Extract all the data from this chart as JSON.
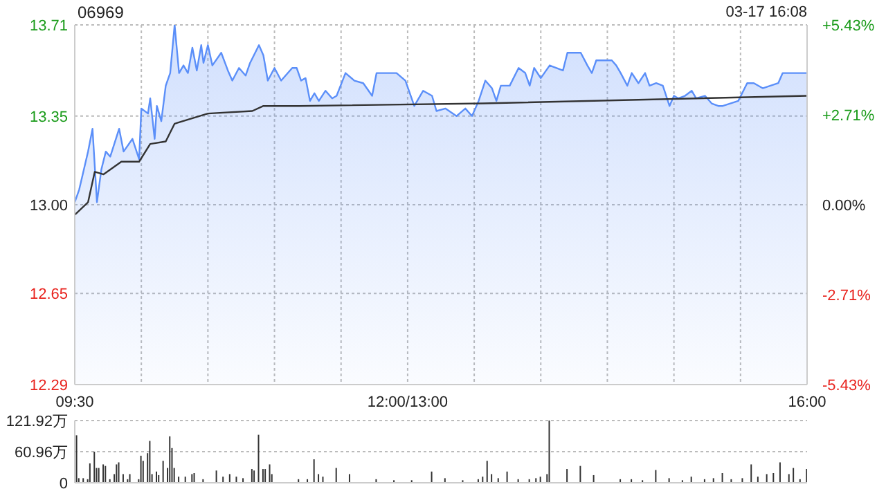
{
  "chart_data": [
    {
      "type": "area",
      "title": "06969",
      "annotations": [
        "03-17 16:08"
      ],
      "categories": [
        "09:30",
        null,
        null,
        null,
        null,
        null,
        null,
        null,
        null,
        null,
        null,
        null,
        null,
        null,
        null,
        null,
        null,
        null,
        null,
        null,
        null,
        null,
        null,
        null,
        null,
        null,
        null,
        null,
        null,
        null,
        null,
        null,
        null,
        null,
        null,
        null,
        null,
        null,
        null,
        null,
        null,
        null,
        null,
        null,
        null,
        null,
        null,
        null,
        null,
        null,
        null,
        null,
        null,
        null,
        null,
        null,
        null,
        null,
        null,
        null,
        null,
        null,
        null,
        null,
        null,
        null,
        null,
        null,
        null,
        null,
        null,
        null,
        null,
        null,
        null,
        null,
        null,
        null,
        null,
        null,
        null,
        null,
        null,
        null,
        null,
        null,
        null,
        null,
        null,
        null,
        null,
        null,
        null,
        null,
        null,
        null,
        null,
        null,
        null,
        null,
        null,
        null,
        null,
        null,
        null,
        null,
        null,
        null,
        null,
        null,
        null,
        null,
        null,
        null,
        null,
        null,
        null,
        null,
        null,
        null,
        null,
        null,
        null,
        null,
        null,
        null,
        null,
        null,
        null,
        null,
        null,
        null,
        null,
        null,
        null,
        null,
        null,
        null,
        null,
        null,
        null,
        null,
        null,
        null,
        null,
        null,
        null,
        null,
        null,
        null,
        "12:00/13:00",
        null,
        null,
        null,
        null,
        null,
        null,
        null,
        null,
        null,
        null,
        null,
        null,
        null,
        null,
        null,
        null,
        null,
        null,
        null,
        null,
        null,
        null,
        null,
        null,
        null,
        null,
        null,
        null,
        null,
        null,
        null,
        null,
        null,
        null,
        null,
        null,
        null,
        null,
        null,
        null,
        null,
        null,
        null,
        null,
        null,
        null,
        null,
        null,
        null,
        null,
        null,
        null,
        null,
        null,
        null,
        null,
        null,
        null,
        null,
        null,
        null,
        null,
        null,
        null,
        null,
        null,
        null,
        null,
        null,
        null,
        null,
        null,
        null,
        null,
        null,
        null,
        null,
        null,
        null,
        null,
        null,
        null,
        null,
        null,
        null,
        null,
        null,
        null,
        null,
        null,
        null,
        null,
        null,
        null,
        null,
        null,
        null,
        null,
        null,
        null,
        null,
        null,
        null,
        null,
        null,
        null,
        null,
        null,
        null,
        null,
        null,
        null,
        null,
        null,
        null,
        null,
        null,
        null,
        null,
        null,
        null,
        null,
        null,
        null,
        null,
        null,
        null,
        null,
        null,
        null,
        null,
        null,
        null,
        null,
        null,
        null,
        null,
        null,
        null,
        null,
        null,
        null,
        null,
        null,
        null,
        null,
        null,
        null,
        null,
        null,
        null,
        null,
        null,
        null,
        null,
        null,
        null,
        null,
        null,
        null,
        null,
        null,
        null,
        null,
        null,
        null,
        null,
        null,
        null,
        null,
        null,
        null,
        null,
        null,
        null,
        null,
        null,
        null,
        null,
        "16:00"
      ],
      "ylim": [
        12.29,
        13.71
      ],
      "yticks": [
        12.29,
        12.65,
        {
          "value": 13,
          "label": "13.00"
        },
        13.35,
        13.71
      ],
      "y2lim": [
        -5.43,
        5.43
      ],
      "y2ticks": [
        {
          "value": -5.43,
          "label": "-5.43%"
        },
        {
          "value": -2.71,
          "label": "-2.71%"
        },
        {
          "value": 0,
          "label": "0.00%"
        },
        {
          "value": 2.71,
          "label": "+2.71%"
        },
        {
          "value": 5.43,
          "label": "+5.43%"
        }
      ],
      "grid": true,
      "series": [
        {
          "color": "#5b8ff9",
          "values": [
            13.01,
            null,
            13.06,
            null,
            null,
            null,
            13.21,
            null,
            13.3,
            null,
            13.01,
            null,
            13.14,
            null,
            13.21,
            null,
            13.19,
            null,
            null,
            null,
            13.3,
            null,
            13.21,
            null,
            null,
            null,
            13.26,
            null,
            null,
            13.18,
            13.38,
            null,
            null,
            13.36,
            13.42,
            null,
            13.26,
            13.39,
            null,
            13.33,
            null,
            13.47,
            null,
            13.52,
            null,
            13.71,
            null,
            13.52,
            null,
            13.55,
            null,
            13.52,
            null,
            13.62,
            null,
            13.53,
            null,
            13.63,
            13.56,
            null,
            13.63,
            null,
            13.55,
            null,
            null,
            null,
            13.6,
            null,
            null,
            13.53,
            null,
            13.49,
            null,
            null,
            13.54,
            null,
            null,
            13.51,
            null,
            13.56,
            null,
            null,
            null,
            13.63,
            null,
            13.59,
            null,
            13.49,
            null,
            null,
            13.54,
            null,
            null,
            13.49,
            null,
            null,
            null,
            null,
            13.54,
            null,
            13.54,
            null,
            13.49,
            null,
            13.5,
            null,
            13.41,
            null,
            13.44,
            null,
            13.41,
            null,
            null,
            13.45,
            null,
            null,
            13.42,
            null,
            13.43,
            null,
            null,
            null,
            13.52,
            null,
            null,
            null,
            13.49,
            null,
            null,
            null,
            13.48,
            null,
            null,
            null,
            13.43,
            null,
            13.52,
            null,
            null,
            null,
            null,
            null,
            null,
            null,
            null,
            13.52,
            null,
            null,
            null,
            13.49,
            null,
            null,
            null,
            13.39,
            null,
            null,
            null,
            13.45,
            null,
            null,
            null,
            13.43,
            null,
            13.37,
            null,
            null,
            null,
            13.38,
            null,
            null,
            null,
            null,
            13.35,
            null,
            null,
            null,
            13.38,
            null,
            null,
            13.35,
            null,
            null,
            13.41,
            null,
            null,
            13.49,
            null,
            null,
            13.46,
            null,
            13.41,
            null,
            13.47,
            null,
            null,
            null,
            13.47,
            null,
            null,
            null,
            13.54,
            null,
            null,
            13.52,
            null,
            13.47,
            null,
            13.54,
            null,
            null,
            13.5,
            null,
            null,
            null,
            13.55,
            null,
            null,
            null,
            null,
            null,
            13.53,
            null,
            13.6,
            null,
            null,
            null,
            null,
            null,
            13.6,
            null,
            null,
            13.55,
            null,
            13.52,
            null,
            13.57,
            null,
            null,
            null,
            null,
            null,
            null,
            13.57,
            null,
            13.55,
            null,
            13.52,
            null,
            null,
            13.47,
            null,
            13.52,
            null,
            null,
            13.48,
            null,
            null,
            13.52,
            null,
            13.47,
            null,
            null,
            13.48,
            null,
            null,
            13.47,
            null,
            null,
            13.39,
            null,
            13.43,
            null,
            13.42,
            null,
            null,
            13.43,
            null,
            null,
            13.45,
            null,
            13.42,
            null,
            null,
            null,
            13.43,
            null,
            null,
            13.4,
            null,
            null,
            13.39,
            null,
            13.39,
            null,
            null,
            null,
            null,
            null,
            null,
            13.41,
            null,
            null,
            null,
            13.48,
            null,
            null,
            13.48,
            null,
            null,
            null,
            13.46,
            null,
            null,
            null,
            null,
            null,
            null,
            13.48,
            null,
            13.52,
            null,
            null,
            null,
            null,
            null,
            null,
            null,
            null,
            null,
            null,
            13.52
          ]
        },
        {
          "type": "line",
          "color": "#333333",
          "values": [
            12.96,
            null,
            null,
            null,
            null,
            null,
            13.01,
            null,
            null,
            13.13,
            null,
            null,
            null,
            13.12,
            null,
            null,
            null,
            null,
            null,
            null,
            null,
            13.17,
            null,
            null,
            null,
            null,
            null,
            null,
            null,
            13.17,
            null,
            null,
            null,
            null,
            13.24,
            null,
            null,
            null,
            null,
            null,
            null,
            13.25,
            null,
            null,
            null,
            13.32,
            null,
            null,
            null,
            null,
            null,
            null,
            null,
            null,
            null,
            null,
            null,
            null,
            null,
            null,
            13.36,
            null,
            null,
            null,
            null,
            null,
            null,
            null,
            null,
            null,
            null,
            null,
            null,
            null,
            null,
            null,
            null,
            null,
            null,
            null,
            13.37,
            null,
            null,
            null,
            null,
            13.39,
            null,
            null,
            null,
            null,
            null,
            null,
            null,
            null,
            null,
            null,
            null,
            null,
            null,
            null,
            null,
            13.39,
            null,
            null,
            null,
            null,
            null,
            null,
            null,
            null,
            null,
            null,
            null,
            null,
            null,
            null,
            null,
            null,
            null,
            null,
            null,
            null,
            null,
            null,
            null,
            null,
            null,
            null,
            null,
            null,
            null,
            null,
            null,
            null,
            null,
            null,
            null,
            null,
            null,
            null,
            null,
            null,
            null,
            null,
            null,
            null,
            null,
            null,
            null,
            null,
            null,
            null,
            null,
            null,
            null,
            null,
            null,
            null,
            null,
            null,
            null,
            null,
            null,
            null,
            null,
            null,
            null,
            null,
            null,
            null,
            null,
            null,
            null,
            null,
            null,
            null,
            null,
            null,
            null,
            null,
            null,
            null,
            null,
            null,
            13.4,
            null,
            null,
            null,
            null,
            null,
            null,
            null,
            null,
            null,
            null,
            null,
            null,
            null,
            null,
            null,
            null,
            null,
            null,
            null,
            null,
            null,
            null,
            null,
            null,
            null,
            null,
            null,
            null,
            null,
            null,
            null,
            null,
            null,
            null,
            null,
            null,
            null,
            null,
            null,
            null,
            null,
            null,
            null,
            null,
            null,
            null,
            null,
            null,
            null,
            null,
            null,
            null,
            null,
            null,
            null,
            null,
            null,
            null,
            null,
            null,
            null,
            null,
            null,
            null,
            null,
            null,
            null,
            null,
            null,
            null,
            null,
            null,
            null,
            null,
            null,
            null,
            null,
            null,
            null,
            null,
            null,
            null,
            null,
            null,
            null,
            null,
            null,
            null,
            null,
            null,
            null,
            null,
            null,
            null,
            null,
            null,
            null,
            null,
            null,
            null,
            null,
            null,
            null,
            null,
            null,
            null,
            null,
            null,
            null,
            null,
            null,
            null,
            null,
            null,
            null,
            null,
            null,
            null,
            null,
            null,
            null,
            null,
            null,
            null,
            null,
            null,
            null,
            null,
            null,
            null,
            null,
            null,
            null,
            null,
            null,
            null,
            null,
            null,
            null,
            null,
            null,
            null,
            null,
            null,
            null,
            13.43
          ]
        }
      ]
    },
    {
      "type": "bar",
      "ylim": [
        0,
        121.92
      ],
      "yticks": [
        0,
        {
          "value": 60.96,
          "label": "60.96万"
        },
        {
          "value": 121.92,
          "label": "121.92万"
        }
      ],
      "tick_labels": "y",
      "grid": "y",
      "categories": [
        null,
        null,
        null,
        null,
        null,
        null,
        null,
        null,
        null,
        null,
        null,
        null,
        null,
        null,
        null,
        null,
        null,
        null,
        null,
        null,
        null,
        null,
        null,
        null,
        null,
        null,
        null,
        null,
        null,
        null,
        null,
        null,
        null,
        null,
        null,
        null,
        null,
        null,
        null,
        null,
        null,
        null,
        null,
        null,
        null,
        null,
        null,
        null,
        null,
        null,
        null,
        null,
        null,
        null,
        null,
        null,
        null,
        null,
        null,
        null,
        null,
        null,
        null,
        null,
        null,
        null,
        null,
        null,
        null,
        null,
        null,
        null,
        null,
        null,
        null,
        null,
        null,
        null,
        null,
        null,
        null,
        null,
        null,
        null,
        null,
        null,
        null,
        null,
        null,
        null,
        null,
        null,
        null,
        null,
        null,
        null,
        null,
        null,
        null,
        null,
        null,
        null,
        null,
        null,
        null,
        null,
        null,
        null,
        null,
        null,
        null,
        null,
        null,
        null,
        null,
        null,
        null,
        null,
        null,
        null,
        null,
        null,
        null,
        null,
        null,
        null,
        null,
        null,
        null,
        null,
        null,
        null,
        null,
        null,
        null,
        null,
        null,
        null,
        null,
        null,
        null,
        null,
        null,
        null,
        null,
        null,
        null,
        null,
        null,
        null,
        null,
        null,
        null,
        null,
        null,
        null,
        null,
        null,
        null,
        null,
        null,
        null,
        null,
        null,
        null,
        null,
        null,
        null,
        null,
        null,
        null,
        null,
        null,
        null,
        null,
        null,
        null,
        null,
        null,
        null,
        null,
        null,
        null,
        null,
        null,
        null,
        null,
        null,
        null,
        null,
        null,
        null,
        null,
        null,
        null,
        null,
        null,
        null,
        null,
        null,
        null,
        null,
        null,
        null,
        null,
        null,
        null,
        null,
        null,
        null,
        null,
        null,
        null,
        null,
        null,
        null,
        null,
        null,
        null,
        null,
        null,
        null,
        null,
        null,
        null,
        null,
        null,
        null,
        null,
        null,
        null,
        null,
        null,
        null,
        null,
        null,
        null,
        null,
        null,
        null,
        null,
        null,
        null,
        null,
        null,
        null,
        null,
        null,
        null,
        null,
        null,
        null,
        null,
        null,
        null,
        null,
        null,
        null,
        null,
        null,
        null,
        null,
        null,
        null,
        null,
        null,
        null,
        null,
        null,
        null,
        null,
        null,
        null,
        null,
        null,
        null,
        null,
        null,
        null,
        null,
        null,
        null,
        null,
        null,
        null,
        null,
        null,
        null,
        null,
        null,
        null,
        null,
        null,
        null,
        null,
        null,
        null,
        null,
        null,
        null,
        null,
        null,
        null,
        null,
        null,
        null,
        null,
        null,
        null,
        null,
        null,
        null,
        null,
        null,
        null,
        null,
        null,
        null,
        null,
        null,
        null,
        null,
        null,
        null,
        null,
        null,
        null,
        null,
        null,
        null,
        null
      ],
      "series": [
        {
          "color": "#333333",
          "values": [
            null,
            93,
            9,
            null,
            9,
            null,
            7,
            38,
            null,
            61,
            29,
            29,
            null,
            36,
            33,
            null,
            7,
            null,
            17,
            36,
            40,
            null,
            17,
            null,
            7,
            17,
            null,
            null,
            null,
            7,
            53,
            43,
            null,
            58,
            82,
            17,
            null,
            22,
            15,
            null,
            43,
            null,
            29,
            91,
            68,
            29,
            null,
            12,
            null,
            null,
            12,
            null,
            null,
            17,
            19,
            null,
            null,
            null,
            7,
            null,
            null,
            null,
            null,
            null,
            24,
            null,
            null,
            12,
            null,
            null,
            17,
            null,
            null,
            12,
            null,
            null,
            9,
            null,
            null,
            null,
            27,
            24,
            null,
            94,
            null,
            27,
            27,
            null,
            36,
            17,
            null,
            null,
            null,
            null,
            null,
            null,
            null,
            null,
            null,
            null,
            null,
            7,
            null,
            null,
            null,
            7,
            null,
            null,
            46,
            null,
            17,
            null,
            12,
            null,
            null,
            null,
            null,
            null,
            29,
            null,
            null,
            null,
            null,
            null,
            17,
            null,
            null,
            null,
            null,
            null,
            null,
            null,
            null,
            null,
            null,
            null,
            7,
            null,
            null,
            null,
            null,
            null,
            null,
            null,
            5,
            null,
            null,
            null,
            null,
            null,
            null,
            null,
            5,
            null,
            null,
            null,
            null,
            null,
            null,
            null,
            null,
            22,
            null,
            null,
            null,
            null,
            null,
            9,
            null,
            null,
            null,
            null,
            null,
            null,
            null,
            5,
            null,
            null,
            null,
            null,
            null,
            null,
            7,
            null,
            12,
            null,
            43,
            null,
            17,
            null,
            null,
            9,
            null,
            null,
            null,
            22,
            null,
            null,
            null,
            null,
            7,
            null,
            null,
            null,
            null,
            7,
            null,
            null,
            9,
            null,
            12,
            null,
            null,
            17,
            121.9,
            null,
            null,
            null,
            null,
            null,
            null,
            null,
            27,
            null,
            null,
            null,
            null,
            null,
            33,
            null,
            null,
            null,
            null,
            null,
            15,
            null,
            null,
            null,
            null,
            null,
            null,
            null,
            null,
            null,
            null,
            null,
            7,
            null,
            null,
            null,
            null,
            7,
            null,
            null,
            null,
            null,
            5,
            null,
            null,
            null,
            null,
            null,
            25,
            null,
            null,
            null,
            null,
            null,
            9,
            null,
            null,
            null,
            null,
            null,
            5,
            null,
            null,
            null,
            12,
            null,
            null,
            null,
            null,
            null,
            7,
            null,
            null,
            null,
            9,
            null,
            null,
            null,
            19,
            null,
            null,
            null,
            7,
            null,
            null,
            null,
            null,
            9,
            null,
            null,
            null,
            36,
            null,
            null,
            12,
            null,
            null,
            null,
            17,
            null,
            null,
            19,
            null,
            null,
            40,
            null,
            null,
            null,
            17,
            null,
            29,
            null,
            null,
            7,
            null,
            null,
            27
          ]
        }
      ]
    }
  ]
}
